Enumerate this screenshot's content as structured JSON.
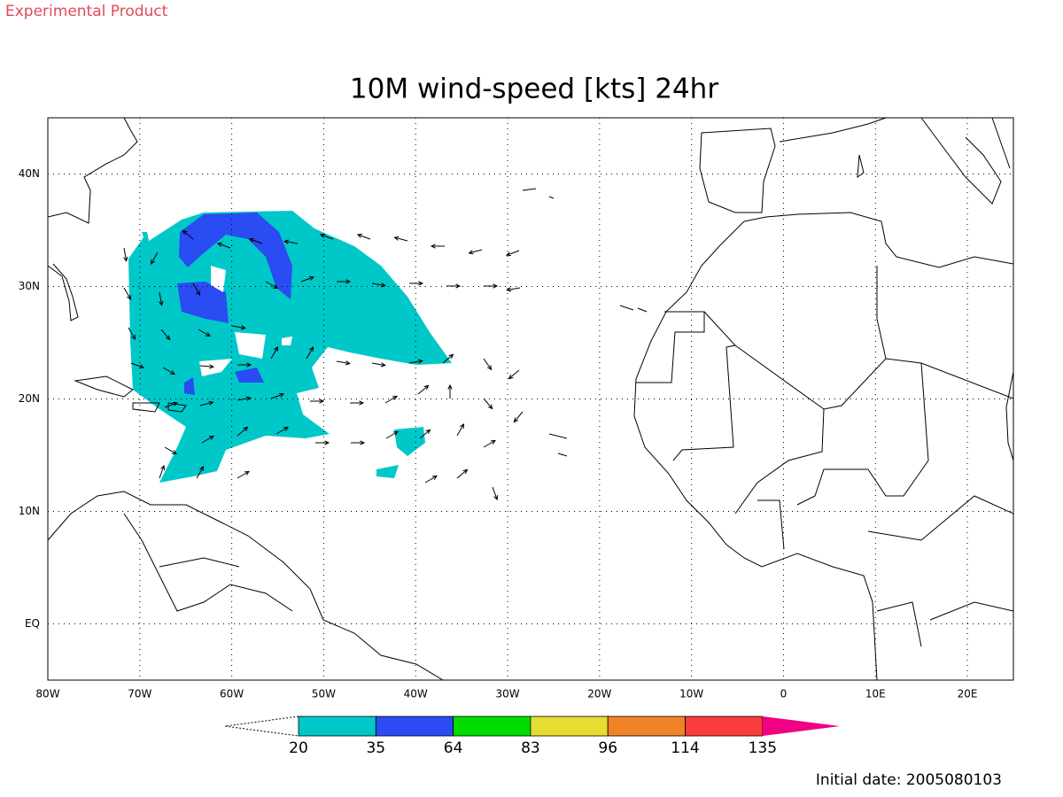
{
  "header": {
    "label": "Experimental Product"
  },
  "map": {
    "title": "10M wind-speed [kts] 24hr",
    "lon_ticks": [
      {
        "value": -80,
        "label": "80W"
      },
      {
        "value": -70,
        "label": "70W"
      },
      {
        "value": -60,
        "label": "60W"
      },
      {
        "value": -50,
        "label": "50W"
      },
      {
        "value": -40,
        "label": "40W"
      },
      {
        "value": -30,
        "label": "30W"
      },
      {
        "value": -20,
        "label": "20W"
      },
      {
        "value": -10,
        "label": "10W"
      },
      0,
      {
        "value": 10,
        "label": "10E"
      },
      {
        "value": 20,
        "label": "20E"
      }
    ],
    "lat_ticks": [
      {
        "value": 40,
        "label": "40N"
      },
      {
        "value": 30,
        "label": "30N"
      },
      {
        "value": 20,
        "label": "20N"
      },
      {
        "value": 10,
        "label": "10N"
      },
      {
        "value": 0,
        "label": "EQ"
      }
    ],
    "lon_range": [
      -80,
      25
    ],
    "lat_range": [
      -5,
      45
    ]
  },
  "colorbar": {
    "levels": [
      20,
      35,
      64,
      83,
      96,
      114,
      135
    ],
    "colors": [
      "#00c8c8",
      "#2a4cf2",
      "#00dc00",
      "#e6dc32",
      "#f08228",
      "#fa3c3c",
      "#f00082"
    ]
  },
  "footer": {
    "label": "Initial date: 2005080103"
  }
}
